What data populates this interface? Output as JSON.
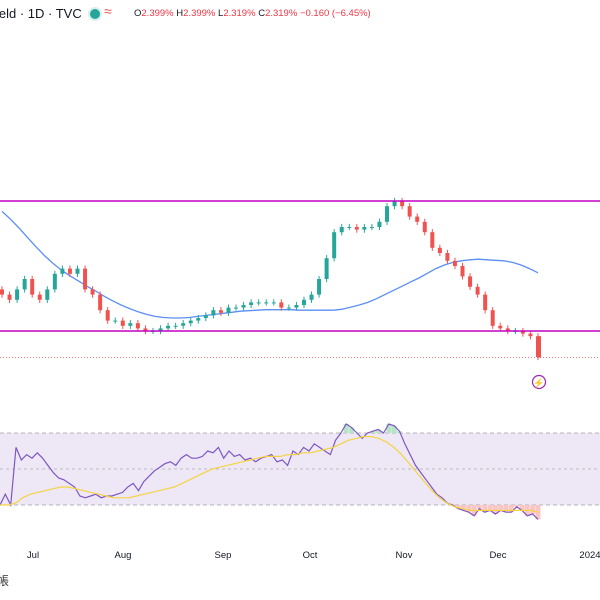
{
  "header": {
    "symbol": "ield · 1D · TVC",
    "eye_icon": "eye-icon",
    "wave_icon": "wave-icon",
    "ohlc": {
      "open_label": "O",
      "open": "2.399%",
      "high_label": "H",
      "high": "2.399%",
      "low_label": "L",
      "low": "2.319%",
      "close_label": "C",
      "close": "2.319%",
      "change": "−0.160 (−6.45%)"
    }
  },
  "colors": {
    "up": "#26a69a",
    "down": "#ef5350",
    "ma": "#5b8ff3",
    "channel": "#c400c4",
    "rsi_line": "#7e57c2",
    "rsi_ma": "#f5d442",
    "rsi_band": "#ede7f6"
  },
  "x_axis": {
    "labels": [
      "Jul",
      "Aug",
      "Sep",
      "Oct",
      "Nov",
      "Dec",
      "2024"
    ]
  },
  "bottom_icon": "plug-icon",
  "bottom_glyph": "帳",
  "chart_data": [
    {
      "type": "candlestick",
      "title": "",
      "x_start": "2023-06-16",
      "x_end": "2023-12-14",
      "channel_upper": 2.62,
      "channel_lower": 2.37,
      "last_close": 2.319,
      "close": [
        2.44,
        2.43,
        2.45,
        2.47,
        2.44,
        2.43,
        2.45,
        2.48,
        2.49,
        2.48,
        2.49,
        2.45,
        2.44,
        2.41,
        2.39,
        2.39,
        2.38,
        2.385,
        2.375,
        2.37,
        2.37,
        2.375,
        2.38,
        2.38,
        2.385,
        2.39,
        2.395,
        2.4,
        2.41,
        2.405,
        2.415,
        2.415,
        2.42,
        2.425,
        2.425,
        2.425,
        2.425,
        2.415,
        2.415,
        2.42,
        2.43,
        2.44,
        2.47,
        2.51,
        2.56,
        2.57,
        2.57,
        2.565,
        2.57,
        2.57,
        2.58,
        2.61,
        2.62,
        2.61,
        2.59,
        2.58,
        2.56,
        2.53,
        2.52,
        2.505,
        2.495,
        2.475,
        2.455,
        2.44,
        2.41,
        2.38,
        2.375,
        2.37,
        2.37,
        2.365,
        2.36,
        2.32
      ],
      "moving_average": [
        2.6,
        2.585,
        2.568,
        2.55,
        2.532,
        2.515,
        2.5,
        2.487,
        2.476,
        2.466,
        2.456,
        2.447,
        2.437,
        2.428,
        2.42,
        2.413,
        2.407,
        2.402,
        2.398,
        2.396,
        2.395,
        2.395,
        2.396,
        2.398,
        2.4,
        2.402,
        2.404,
        2.406,
        2.408,
        2.409,
        2.41,
        2.411,
        2.411,
        2.411,
        2.411,
        2.41,
        2.41,
        2.41,
        2.41,
        2.41,
        2.412,
        2.416,
        2.42,
        2.425,
        2.432,
        2.44,
        2.448,
        2.456,
        2.464,
        2.472,
        2.481,
        2.49,
        2.497,
        2.502,
        2.505,
        2.507,
        2.508,
        2.507,
        2.506,
        2.505,
        2.502,
        2.497,
        2.49,
        2.482
      ]
    },
    {
      "type": "line",
      "title": "",
      "overbought": 70,
      "oversold": 30,
      "midline": 50,
      "rsi": [
        30,
        36,
        30,
        62,
        55,
        58,
        56,
        59,
        56,
        52,
        48,
        45,
        44,
        42,
        40,
        35,
        34,
        35,
        36,
        34,
        35,
        35,
        36,
        37,
        40,
        42,
        38,
        43,
        46,
        49,
        51,
        53,
        54,
        52,
        56,
        58,
        56,
        56,
        57,
        60,
        59,
        62,
        56,
        60,
        57,
        58,
        55,
        56,
        54,
        56,
        57,
        58,
        54,
        55,
        52,
        60,
        58,
        62,
        60,
        64,
        62,
        60,
        58,
        66,
        70,
        75,
        73,
        70,
        67,
        70,
        71,
        72,
        70,
        75,
        74,
        71,
        64,
        58,
        52,
        48,
        44,
        40,
        36,
        34,
        31,
        30,
        28,
        27,
        26,
        24,
        28,
        26,
        27,
        25,
        27,
        26,
        26,
        29,
        27,
        24,
        25,
        22
      ],
      "rsi_ma": [
        30,
        30,
        31,
        34,
        36,
        37,
        38,
        39,
        40,
        40,
        39,
        38,
        37,
        36,
        35,
        34,
        34,
        34,
        35,
        36,
        37,
        38,
        39,
        40,
        42,
        44,
        46,
        48,
        50,
        51,
        52,
        53,
        54,
        55,
        56,
        57,
        57,
        57,
        58,
        58,
        59,
        59,
        60,
        61,
        62,
        64,
        66,
        67,
        68,
        68,
        67,
        65,
        62,
        58,
        53,
        48,
        43,
        38,
        34,
        31,
        29,
        28,
        27,
        27,
        27,
        27,
        27,
        27,
        27,
        27,
        27,
        26
      ]
    }
  ]
}
